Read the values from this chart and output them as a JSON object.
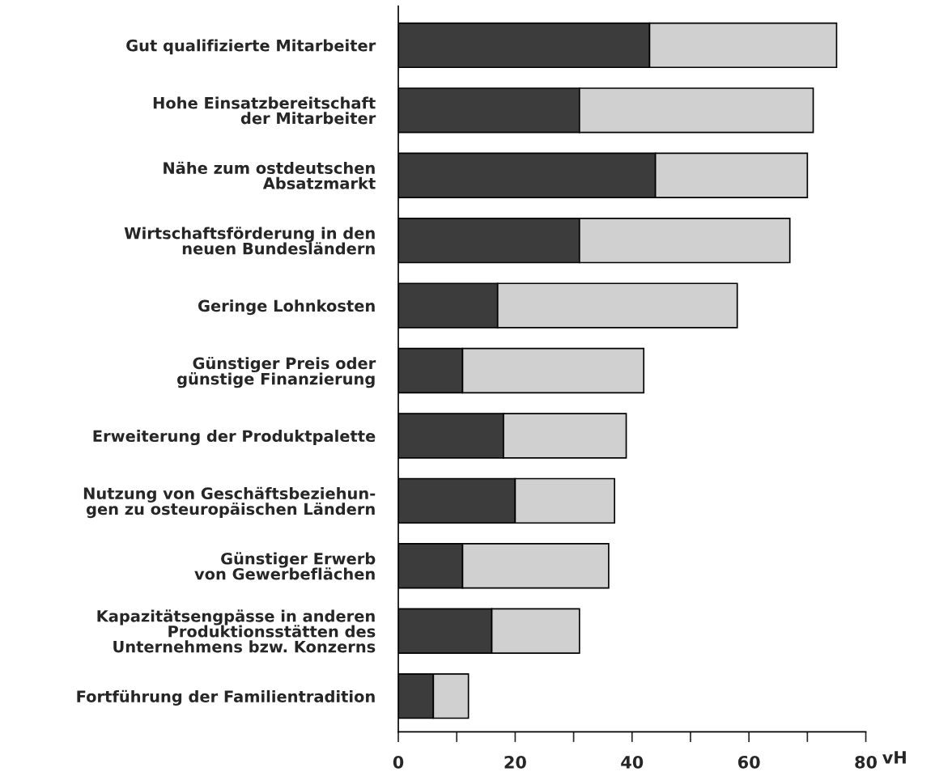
{
  "chart_data": {
    "type": "bar",
    "orientation": "horizontal",
    "stacked": true,
    "categories": [
      "Gut qualifizierte Mitarbeiter",
      "Hohe Einsatzbereitschaft\nder Mitarbeiter",
      "Nähe zum ostdeutschen\nAbsatzmarkt",
      "Wirtschaftsförderung in den\nneuen Bundesländern",
      "Geringe Lohnkosten",
      "Günstiger Preis oder\ngünstige Finanzierung",
      "Erweiterung der Produktpalette",
      "Nutzung von Geschäftsbeziehun-\ngen zu osteuropäischen Ländern",
      "Günstiger Erwerb\nvon Gewerbeflächen",
      "Kapazitätsengpässe in anderen\nProduktionsstätten des\nUnternehmens bzw. Konzerns",
      "Fortführung der Familientradition"
    ],
    "series": [
      {
        "color": "#3c3c3c",
        "values": [
          43,
          31,
          44,
          31,
          17,
          11,
          18,
          20,
          11,
          16,
          6
        ]
      },
      {
        "color": "#d0d0d0",
        "values": [
          32,
          40,
          26,
          36,
          41,
          31,
          21,
          17,
          25,
          15,
          6
        ]
      }
    ],
    "xlim": [
      0,
      80
    ],
    "xticks": [
      0,
      {
        "value": 10,
        "label": null
      },
      20,
      {
        "value": 30,
        "label": null
      },
      40,
      {
        "value": 50,
        "label": null
      },
      60,
      {
        "value": 70,
        "label": null
      },
      80
    ],
    "xlabel": "vH",
    "grid": false,
    "legend": false
  }
}
